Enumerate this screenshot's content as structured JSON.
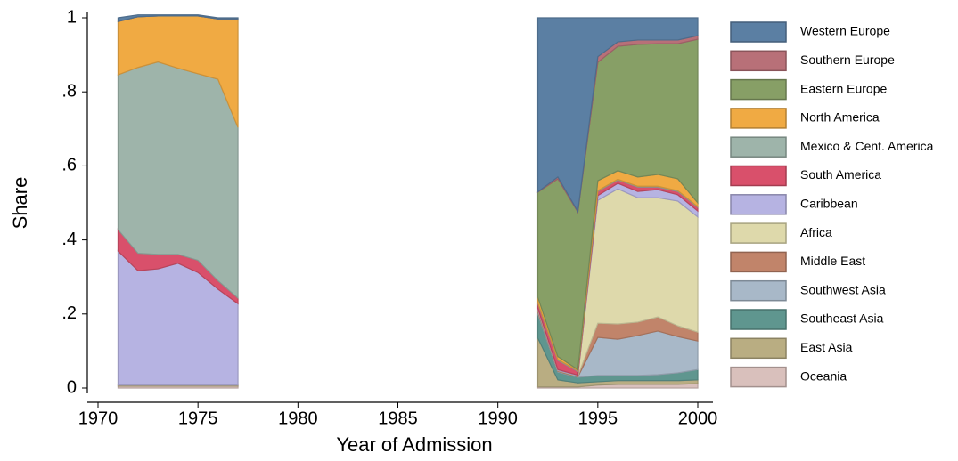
{
  "chart_data": {
    "type": "stacked_area",
    "x_label": "Year of Admission",
    "y_label": "Share",
    "x": [
      1971,
      1972,
      1973,
      1974,
      1975,
      1976,
      1977,
      1978,
      1979,
      1980,
      1981,
      1982,
      1983,
      1984,
      1985,
      1986,
      1987,
      1988,
      1989,
      1990,
      1991,
      1992,
      1993,
      1994,
      1995,
      1996,
      1997,
      1998,
      1999,
      2000
    ],
    "xlim": [
      1970,
      2000
    ],
    "xticks": [
      1970,
      1975,
      1980,
      1985,
      1990,
      1995,
      2000
    ],
    "ylim": [
      0,
      1
    ],
    "yticks": [
      0,
      {
        "value": 0.2,
        "label": ".2"
      },
      {
        "value": 0.4,
        "label": ".4"
      },
      {
        "value": 0.6,
        "label": ".6"
      },
      {
        "value": 0.8,
        "label": ".8"
      },
      1
    ],
    "series": [
      {
        "name": "Western Europe",
        "color": "#5b7fa3",
        "values": [
          0.01,
          0.005,
          0.003,
          0.003,
          0.003,
          0.003,
          0.003,
          null,
          null,
          null,
          null,
          null,
          null,
          null,
          null,
          null,
          null,
          null,
          null,
          null,
          null,
          0.47,
          0.43,
          0.523,
          0.105,
          0.065,
          0.06,
          0.06,
          0.06,
          0.048
        ]
      },
      {
        "name": "Southern Europe",
        "color": "#b87078",
        "values": [
          0,
          0,
          0,
          0,
          0,
          0,
          0,
          null,
          null,
          null,
          null,
          null,
          null,
          null,
          null,
          null,
          null,
          null,
          null,
          null,
          null,
          0.001,
          0.005,
          0.002,
          0.015,
          0.012,
          0.012,
          0.01,
          0.01,
          0.01
        ]
      },
      {
        "name": "Eastern Europe",
        "color": "#879f66",
        "values": [
          0,
          0,
          0,
          0,
          0,
          0,
          0,
          null,
          null,
          null,
          null,
          null,
          null,
          null,
          null,
          null,
          null,
          null,
          null,
          null,
          null,
          0.284,
          0.48,
          0.425,
          0.32,
          0.336,
          0.358,
          0.353,
          0.365,
          0.442
        ]
      },
      {
        "name": "North America",
        "color": "#f0aa43",
        "values": [
          0.144,
          0.137,
          0.124,
          0.141,
          0.156,
          0.163,
          0.293,
          null,
          null,
          null,
          null,
          null,
          null,
          null,
          null,
          null,
          null,
          null,
          null,
          null,
          null,
          0.015,
          0.008,
          0.003,
          0.027,
          0.023,
          0.025,
          0.032,
          0.032,
          0.01
        ]
      },
      {
        "name": "Mexico & Cent. America",
        "color": "#9eb4aa",
        "values": [
          0.418,
          0.502,
          0.52,
          0.503,
          0.504,
          0.544,
          0.461,
          null,
          null,
          null,
          null,
          null,
          null,
          null,
          null,
          null,
          null,
          null,
          null,
          null,
          null,
          0.002,
          0.002,
          0.002,
          0.002,
          0.002,
          0.002,
          0.002,
          0.002,
          0.002
        ]
      },
      {
        "name": "South America",
        "color": "#d9506b",
        "values": [
          0.058,
          0.047,
          0.039,
          0.024,
          0.033,
          0.023,
          0.015,
          null,
          null,
          null,
          null,
          null,
          null,
          null,
          null,
          null,
          null,
          null,
          null,
          null,
          null,
          0.013,
          0.025,
          0.01,
          0.011,
          0.009,
          0.012,
          0.007,
          0.009,
          0.01
        ]
      },
      {
        "name": "Caribbean",
        "color": "#b6b3e2",
        "values": [
          0.362,
          0.309,
          0.314,
          0.329,
          0.304,
          0.259,
          0.22,
          null,
          null,
          null,
          null,
          null,
          null,
          null,
          null,
          null,
          null,
          null,
          null,
          null,
          null,
          0.002,
          0.002,
          0.002,
          0.013,
          0.015,
          0.017,
          0.022,
          0.017,
          0.016
        ]
      },
      {
        "name": "Africa",
        "color": "#ded9ab",
        "values": [
          0,
          0,
          0,
          0,
          0,
          0,
          0,
          null,
          null,
          null,
          null,
          null,
          null,
          null,
          null,
          null,
          null,
          null,
          null,
          null,
          null,
          0.003,
          0.001,
          0.001,
          0.332,
          0.365,
          0.336,
          0.322,
          0.337,
          0.311
        ]
      },
      {
        "name": "Middle East",
        "color": "#c1846a",
        "values": [
          0,
          0,
          0,
          0,
          0,
          0,
          0,
          null,
          null,
          null,
          null,
          null,
          null,
          null,
          null,
          null,
          null,
          null,
          null,
          null,
          null,
          0.005,
          0.002,
          0.002,
          0.038,
          0.041,
          0.036,
          0.038,
          0.029,
          0.024
        ]
      },
      {
        "name": "Southwest Asia",
        "color": "#a8b8c8",
        "values": [
          0,
          0,
          0,
          0,
          0,
          0,
          0,
          null,
          null,
          null,
          null,
          null,
          null,
          null,
          null,
          null,
          null,
          null,
          null,
          null,
          null,
          0.005,
          0.002,
          0.001,
          0.103,
          0.098,
          0.108,
          0.118,
          0.098,
          0.077
        ]
      },
      {
        "name": "Southeast Asia",
        "color": "#5f968f",
        "values": [
          0,
          0,
          0,
          0,
          0,
          0,
          0,
          null,
          null,
          null,
          null,
          null,
          null,
          null,
          null,
          null,
          null,
          null,
          null,
          null,
          null,
          0.065,
          0.021,
          0.015,
          0.017,
          0.014,
          0.014,
          0.016,
          0.021,
          0.028
        ]
      },
      {
        "name": "East Asia",
        "color": "#b9ad82",
        "values": [
          0.003,
          0.003,
          0.003,
          0.003,
          0.003,
          0.003,
          0.003,
          null,
          null,
          null,
          null,
          null,
          null,
          null,
          null,
          null,
          null,
          null,
          null,
          null,
          null,
          0.132,
          0.019,
          0.011,
          0.009,
          0.01,
          0.01,
          0.01,
          0.01,
          0.01
        ]
      },
      {
        "name": "Oceania",
        "color": "#d9c0bc",
        "values": [
          0.005,
          0.005,
          0.005,
          0.005,
          0.005,
          0.005,
          0.005,
          null,
          null,
          null,
          null,
          null,
          null,
          null,
          null,
          null,
          null,
          null,
          null,
          null,
          null,
          0.003,
          0.003,
          0.003,
          0.008,
          0.01,
          0.01,
          0.01,
          0.01,
          0.012
        ]
      }
    ]
  }
}
